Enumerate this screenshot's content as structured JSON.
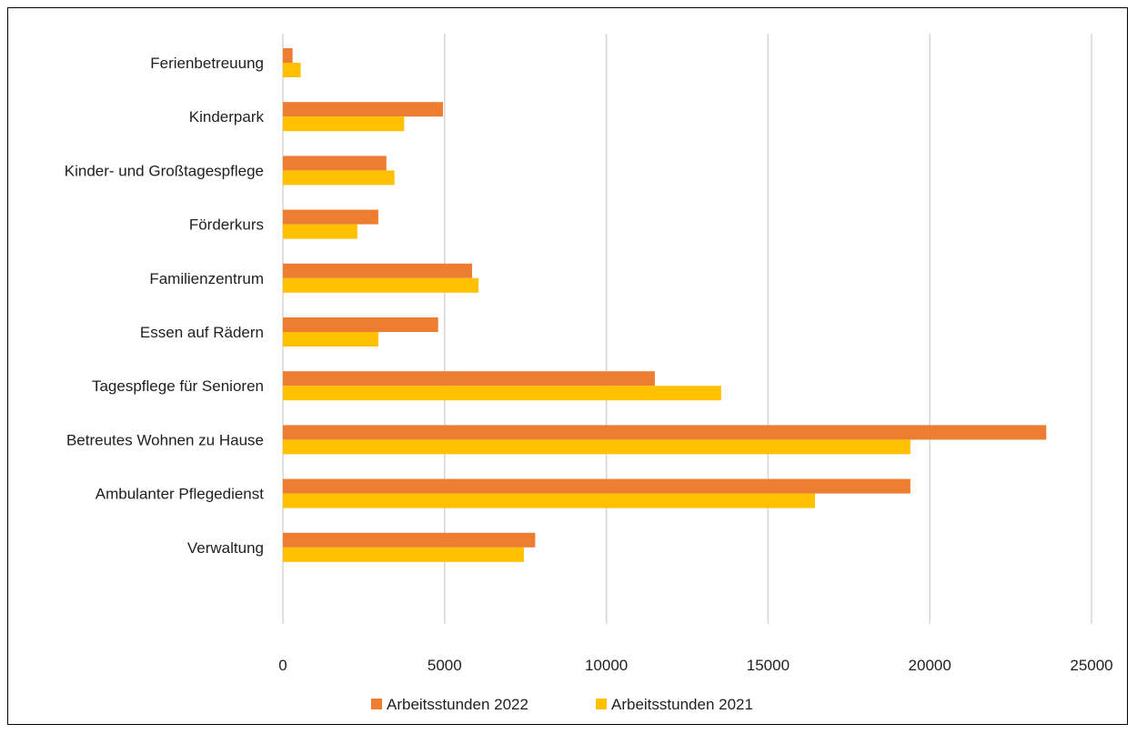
{
  "chart_data": {
    "type": "bar",
    "orientation": "horizontal",
    "categories": [
      "Ferienbetreuung",
      "Kinderpark",
      "Kinder- und Großtagespflege",
      "Förderkurs",
      "Familienzentrum",
      "Essen auf Rädern",
      "Tagespflege für Senioren",
      "Betreutes Wohnen zu Hause",
      "Ambulanter Pflegedienst",
      "Verwaltung"
    ],
    "series": [
      {
        "name": "Arbeitsstunden 2022",
        "color": "#ED7D31",
        "values": [
          300,
          4950,
          3200,
          2950,
          5850,
          4800,
          11500,
          23600,
          19400,
          7800
        ]
      },
      {
        "name": "Arbeitsstunden 2021",
        "color": "#FFC000",
        "values": [
          550,
          3750,
          3450,
          2300,
          6050,
          2950,
          13550,
          19400,
          16450,
          7450
        ]
      }
    ],
    "xlim": [
      0,
      25000
    ],
    "x_ticks": [
      "0",
      "5000",
      "10000",
      "15000",
      "20000",
      "25000"
    ],
    "grid": true,
    "legend_position": "bottom"
  }
}
